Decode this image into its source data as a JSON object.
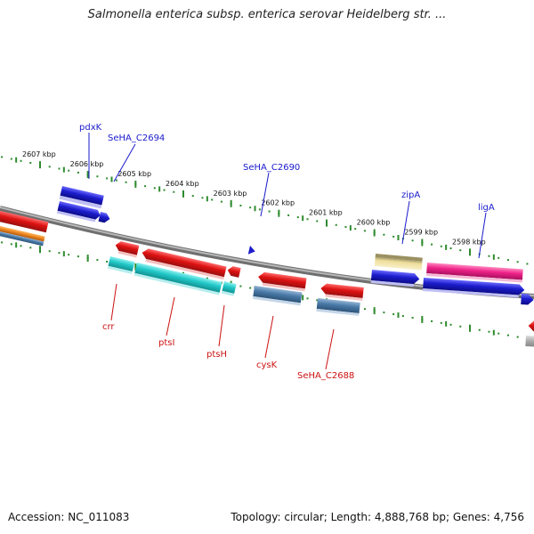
{
  "title": "Salmonella enterica subsp. enterica serovar Heidelberg str. ...",
  "footer": {
    "accession": "Accession: NC_011083",
    "stats": "Topology: circular; Length: 4,888,768 bp; Genes: 4,756"
  },
  "ticks": [
    {
      "label": "2607 kbp",
      "kb": 2607
    },
    {
      "label": "2606 kbp",
      "kb": 2606
    },
    {
      "label": "2605 kbp",
      "kb": 2605
    },
    {
      "label": "2604 kbp",
      "kb": 2604
    },
    {
      "label": "2603 kbp",
      "kb": 2603
    },
    {
      "label": "2602 kbp",
      "kb": 2602
    },
    {
      "label": "2601 kbp",
      "kb": 2601
    },
    {
      "label": "2600 kbp",
      "kb": 2600
    },
    {
      "label": "2599 kbp",
      "kb": 2599
    },
    {
      "label": "2598 kbp",
      "kb": 2598
    }
  ],
  "gene_labels_top": [
    "pdxK",
    "SeHA_C2694",
    "SeHA_C2690",
    "zipA",
    "ligA"
  ],
  "gene_labels_bottom": [
    "crr",
    "ptsI",
    "ptsH",
    "cysK",
    "SeHA_C2688"
  ],
  "colors": {
    "backbone": "#8a8a8a",
    "ticks": "#2e8b2e",
    "forward_cds": "#1c1ccc",
    "reverse_cds": "#dd1111",
    "reverse_gene": "#4a7aa8",
    "teal_gene": "#22c8c8",
    "zipA_gene": "#eedd99",
    "ligA_gene": "#ee2288",
    "orange_gene": "#ee8822",
    "top_label": "#1a1acc",
    "bottom_label": "#cc1111"
  }
}
